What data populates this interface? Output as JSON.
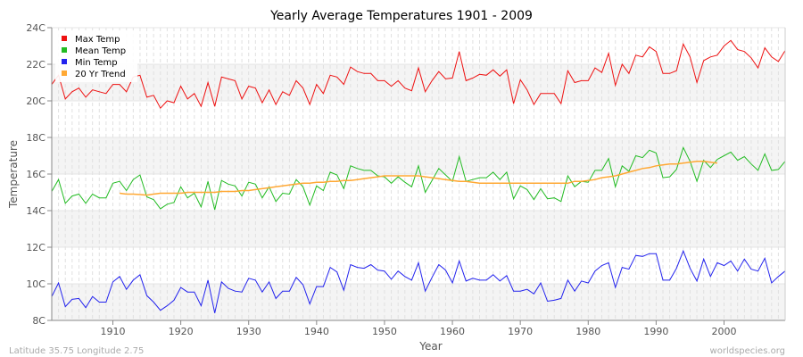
{
  "chart_data": {
    "type": "line",
    "title": "Yearly Average Temperatures 1901 - 2009",
    "xlabel": "Year",
    "ylabel": "Temperature",
    "xlim": [
      1901,
      2009
    ],
    "ylim": [
      8,
      24
    ],
    "x_ticks": [
      1910,
      1920,
      1930,
      1940,
      1950,
      1960,
      1970,
      1980,
      1990,
      2000
    ],
    "y_ticks": [
      "8C",
      "10C",
      "12C",
      "14C",
      "16C",
      "18C",
      "20C",
      "22C",
      "24C"
    ],
    "grid": true,
    "legend_position": "top-left",
    "x_start": 1901,
    "series": [
      {
        "name": "Max Temp",
        "color": "#ee1111",
        "start": 1901,
        "values": [
          20.9,
          21.4,
          20.1,
          20.5,
          20.7,
          20.2,
          20.6,
          20.5,
          20.4,
          20.9,
          20.9,
          20.5,
          21.3,
          21.4,
          20.2,
          20.3,
          19.6,
          20.0,
          19.9,
          20.8,
          20.1,
          20.4,
          19.7,
          21.0,
          19.7,
          21.3,
          21.2,
          21.1,
          20.1,
          20.8,
          20.7,
          19.9,
          20.6,
          19.8,
          20.5,
          20.3,
          21.1,
          20.7,
          19.8,
          20.9,
          20.4,
          21.4,
          21.3,
          20.9,
          21.85,
          21.6,
          21.5,
          21.5,
          21.1,
          21.1,
          20.8,
          21.1,
          20.7,
          20.55,
          21.8,
          20.5,
          21.1,
          21.6,
          21.2,
          21.25,
          22.7,
          21.1,
          21.25,
          21.45,
          21.4,
          21.7,
          21.35,
          21.7,
          19.85,
          21.15,
          20.6,
          19.8,
          20.4,
          20.4,
          20.4,
          19.85,
          21.65,
          21.0,
          21.1,
          21.1,
          21.8,
          21.55,
          22.6,
          20.85,
          22.0,
          21.5,
          22.5,
          22.4,
          22.95,
          22.7,
          21.5,
          21.5,
          21.65,
          23.1,
          22.4,
          21.0,
          22.2,
          22.4,
          22.5,
          23.0,
          23.3,
          22.8,
          22.7,
          22.35,
          21.8,
          22.9,
          22.4,
          22.15,
          22.75
        ]
      },
      {
        "name": "Mean Temp",
        "color": "#22bb22",
        "start": 1901,
        "values": [
          15.05,
          15.7,
          14.4,
          14.8,
          14.9,
          14.4,
          14.9,
          14.7,
          14.7,
          15.5,
          15.6,
          15.1,
          15.7,
          15.95,
          14.75,
          14.6,
          14.1,
          14.35,
          14.45,
          15.3,
          14.7,
          14.95,
          14.2,
          15.6,
          14.05,
          15.65,
          15.45,
          15.35,
          14.8,
          15.55,
          15.45,
          14.7,
          15.3,
          14.5,
          14.95,
          14.9,
          15.7,
          15.3,
          14.3,
          15.35,
          15.1,
          16.1,
          15.95,
          15.2,
          16.45,
          16.3,
          16.2,
          16.2,
          15.9,
          15.85,
          15.5,
          15.85,
          15.55,
          15.3,
          16.45,
          15.0,
          15.65,
          16.3,
          15.95,
          15.6,
          16.95,
          15.6,
          15.7,
          15.8,
          15.8,
          16.1,
          15.7,
          16.1,
          14.65,
          15.35,
          15.15,
          14.6,
          15.2,
          14.65,
          14.7,
          14.5,
          15.9,
          15.3,
          15.6,
          15.55,
          16.2,
          16.2,
          16.85,
          15.3,
          16.45,
          16.15,
          17.0,
          16.9,
          17.3,
          17.15,
          15.8,
          15.85,
          16.25,
          17.45,
          16.7,
          15.6,
          16.75,
          16.35,
          16.8,
          17.0,
          17.2,
          16.75,
          16.95,
          16.55,
          16.2,
          17.1,
          16.2,
          16.25,
          16.7
        ]
      },
      {
        "name": "Min Temp",
        "color": "#2222ee",
        "start": 1901,
        "values": [
          9.3,
          10.05,
          8.75,
          9.15,
          9.2,
          8.7,
          9.3,
          9.0,
          9.0,
          10.1,
          10.4,
          9.7,
          10.2,
          10.5,
          9.35,
          9.0,
          8.55,
          8.8,
          9.1,
          9.8,
          9.55,
          9.55,
          8.8,
          10.2,
          8.4,
          10.1,
          9.75,
          9.6,
          9.55,
          10.3,
          10.2,
          9.55,
          10.1,
          9.2,
          9.6,
          9.6,
          10.35,
          9.95,
          8.9,
          9.85,
          9.85,
          10.9,
          10.65,
          9.65,
          11.05,
          10.9,
          10.85,
          11.05,
          10.75,
          10.7,
          10.25,
          10.7,
          10.4,
          10.2,
          11.15,
          9.6,
          10.35,
          11.05,
          10.75,
          10.05,
          11.25,
          10.15,
          10.3,
          10.2,
          10.2,
          10.5,
          10.15,
          10.45,
          9.6,
          9.6,
          9.7,
          9.45,
          10.05,
          9.05,
          9.1,
          9.2,
          10.2,
          9.6,
          10.15,
          10.05,
          10.7,
          11.0,
          11.15,
          9.8,
          10.9,
          10.8,
          11.55,
          11.5,
          11.65,
          11.65,
          10.2,
          10.2,
          10.85,
          11.8,
          10.85,
          10.15,
          11.35,
          10.4,
          11.15,
          11.0,
          11.25,
          10.7,
          11.35,
          10.8,
          10.7,
          11.4,
          10.05,
          10.4,
          10.7
        ]
      },
      {
        "name": "20 Yr Trend",
        "color": "#ffa833",
        "start": 1911,
        "values": [
          14.95,
          14.9,
          14.9,
          14.88,
          14.85,
          14.9,
          14.95,
          14.95,
          14.95,
          14.95,
          15.0,
          15.0,
          15.0,
          15.0,
          15.0,
          15.05,
          15.05,
          15.05,
          15.1,
          15.1,
          15.15,
          15.2,
          15.25,
          15.3,
          15.35,
          15.4,
          15.45,
          15.5,
          15.5,
          15.55,
          15.55,
          15.6,
          15.6,
          15.65,
          15.65,
          15.7,
          15.75,
          15.8,
          15.85,
          15.9,
          15.9,
          15.9,
          15.9,
          15.9,
          15.9,
          15.85,
          15.8,
          15.75,
          15.7,
          15.65,
          15.6,
          15.6,
          15.55,
          15.5,
          15.5,
          15.5,
          15.5,
          15.5,
          15.5,
          15.5,
          15.5,
          15.5,
          15.5,
          15.5,
          15.5,
          15.5,
          15.5,
          15.6,
          15.6,
          15.65,
          15.7,
          15.8,
          15.85,
          15.9,
          16.0,
          16.1,
          16.2,
          16.3,
          16.35,
          16.45,
          16.5,
          16.55,
          16.55,
          16.6,
          16.65,
          16.7,
          16.7,
          16.65,
          16.6
        ]
      }
    ]
  },
  "footer": {
    "location": "Latitude 35.75 Longitude 2.75",
    "source": "worldspecies.org"
  }
}
